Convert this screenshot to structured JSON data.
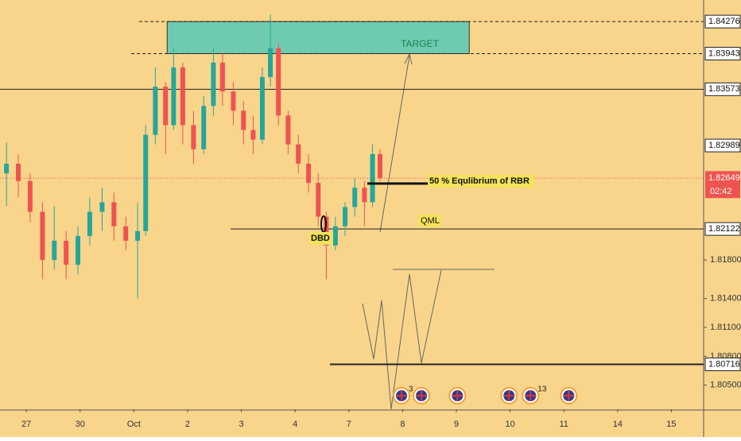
{
  "chart_data": {
    "type": "candlestick",
    "background": "#f9d58c",
    "up_color": "#26a69a",
    "down_color": "#ef5350",
    "xlim": [
      -0.49,
      12.6
    ],
    "ylim": [
      1.8025,
      1.845
    ],
    "xticks": [
      {
        "value": 0,
        "label": "27"
      },
      {
        "value": 1,
        "label": "30"
      },
      {
        "value": 2,
        "label": "Oct"
      },
      {
        "value": 3,
        "label": "2"
      },
      {
        "value": 4,
        "label": "3"
      },
      {
        "value": 5,
        "label": "4"
      },
      {
        "value": 6,
        "label": "7"
      },
      {
        "value": 7,
        "label": "8"
      },
      {
        "value": 8,
        "label": "9"
      },
      {
        "value": 9,
        "label": "10"
      },
      {
        "value": 10,
        "label": "11"
      },
      {
        "value": 11,
        "label": "14"
      },
      {
        "value": 12,
        "label": "15"
      }
    ],
    "yticks": [
      {
        "value": 1.818,
        "label": "1.81800"
      },
      {
        "value": 1.814,
        "label": "1.81400"
      },
      {
        "value": 1.811,
        "label": "1.81100"
      },
      {
        "value": 1.808,
        "label": "1.80800"
      },
      {
        "value": 1.805,
        "label": "1.80500"
      }
    ],
    "x": [
      -0.37,
      -0.15,
      0.07,
      0.3,
      0.52,
      0.74,
      0.96,
      1.18,
      1.41,
      1.63,
      1.85,
      2.07,
      2.22,
      2.4,
      2.59,
      2.74,
      2.91,
      3.11,
      3.3,
      3.48,
      3.65,
      3.85,
      4.04,
      4.22,
      4.39,
      4.54,
      4.69,
      4.87,
      5.06,
      5.25,
      5.43,
      5.58,
      5.75,
      5.93,
      6.11,
      6.29,
      6.44,
      6.58
    ],
    "open": [
      1.827,
      1.828,
      1.8262,
      1.823,
      1.818,
      1.82,
      1.8175,
      1.8205,
      1.823,
      1.824,
      1.8215,
      1.82,
      1.821,
      1.831,
      1.836,
      1.832,
      1.838,
      1.832,
      1.8295,
      1.834,
      1.8385,
      1.8355,
      1.8335,
      1.8315,
      1.8305,
      1.837,
      1.84,
      1.833,
      1.83,
      1.828,
      1.826,
      1.8225,
      1.8195,
      1.8215,
      1.8235,
      1.8255,
      1.824,
      1.829
    ],
    "high": [
      1.8302,
      1.829,
      1.827,
      1.824,
      1.8236,
      1.821,
      1.8215,
      1.8245,
      1.8255,
      1.825,
      1.8225,
      1.824,
      1.832,
      1.838,
      1.8365,
      1.84,
      1.8385,
      1.8335,
      1.835,
      1.84,
      1.8395,
      1.8365,
      1.8345,
      1.833,
      1.838,
      1.8435,
      1.8405,
      1.8335,
      1.831,
      1.829,
      1.827,
      1.823,
      1.8225,
      1.824,
      1.8265,
      1.8262,
      1.83,
      1.8295
    ],
    "low": [
      1.8236,
      1.8245,
      1.8219,
      1.816,
      1.817,
      1.816,
      1.8165,
      1.8195,
      1.821,
      1.82,
      1.819,
      1.814,
      1.8205,
      1.83,
      1.829,
      1.8315,
      1.83,
      1.828,
      1.829,
      1.833,
      1.834,
      1.832,
      1.83,
      1.829,
      1.83,
      1.836,
      1.832,
      1.829,
      1.827,
      1.825,
      1.8215,
      1.816,
      1.819,
      1.8205,
      1.8225,
      1.8215,
      1.8235,
      1.8262
    ],
    "close": [
      1.828,
      1.8262,
      1.823,
      1.818,
      1.82,
      1.8175,
      1.8205,
      1.823,
      1.824,
      1.8215,
      1.82,
      1.821,
      1.831,
      1.836,
      1.832,
      1.838,
      1.832,
      1.8295,
      1.834,
      1.8385,
      1.8355,
      1.8335,
      1.8315,
      1.8305,
      1.837,
      1.84,
      1.833,
      1.83,
      1.828,
      1.826,
      1.8225,
      1.8195,
      1.8215,
      1.8235,
      1.8255,
      1.824,
      1.829,
      1.8265
    ],
    "levels": [
      {
        "value": 1.84276,
        "style": "dashed"
      },
      {
        "value": 1.83943,
        "style": "dashed"
      },
      {
        "value": 1.83573,
        "style": "solid"
      },
      {
        "value": 1.82989,
        "style": "none"
      },
      {
        "value": 1.82122,
        "style": "solid"
      },
      {
        "value": 1.80716,
        "style": "bold"
      }
    ],
    "current_price": 1.82649,
    "countdown": "02:42",
    "target_zone": {
      "label": "TARGET",
      "x": [
        2.62,
        8.24
      ],
      "y": [
        1.83943,
        1.84276
      ]
    },
    "annotations": [
      "50 % Equlibrium of RBR",
      "QML",
      "DBD"
    ],
    "events": [
      {
        "x": 6.98,
        "badge": 3
      },
      {
        "x": 7.35
      },
      {
        "x": 8.02
      },
      {
        "x": 8.98
      },
      {
        "x": 9.38,
        "badge": 13
      },
      {
        "x": 10.09
      }
    ]
  }
}
